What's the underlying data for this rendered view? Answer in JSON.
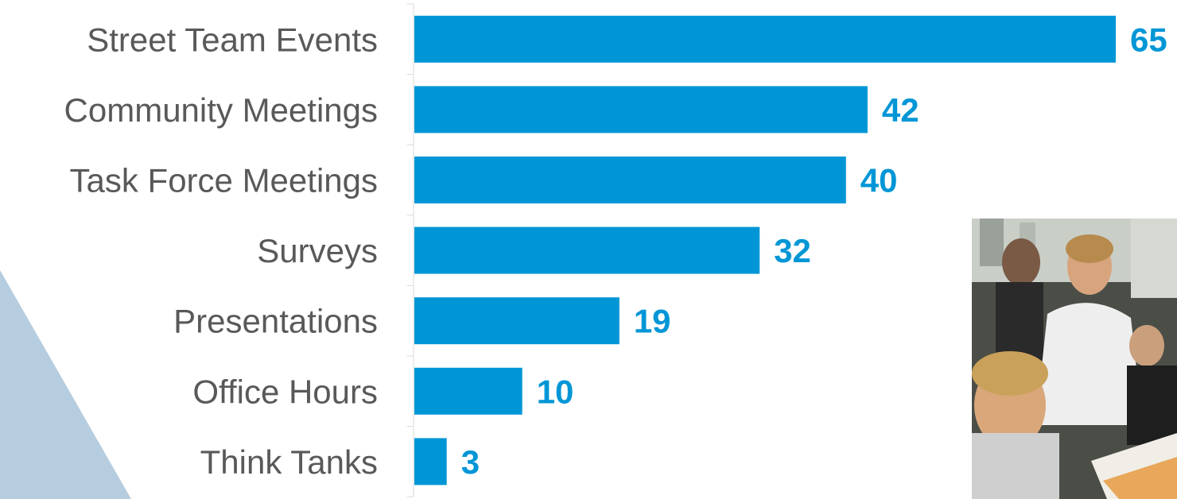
{
  "chart_data": {
    "type": "bar",
    "orientation": "horizontal",
    "categories": [
      "Street Team Events",
      "Community Meetings",
      "Task Force Meetings",
      "Surveys",
      "Presentations",
      "Office Hours",
      "Think Tanks"
    ],
    "values": [
      65,
      42,
      40,
      32,
      19,
      10,
      3
    ],
    "title": "",
    "xlabel": "",
    "ylabel": "",
    "xlim": [
      0,
      65
    ],
    "grid": false,
    "legend": "none",
    "data_labels": true,
    "bar_color": "#0096D6",
    "label_color": "#0096D6"
  },
  "colors": {
    "category_text": "#595959",
    "decor_triangle": "#B6CDDF",
    "axis": "#D9D9D9"
  },
  "photo": {
    "description_icon": "people-at-table-photo"
  }
}
